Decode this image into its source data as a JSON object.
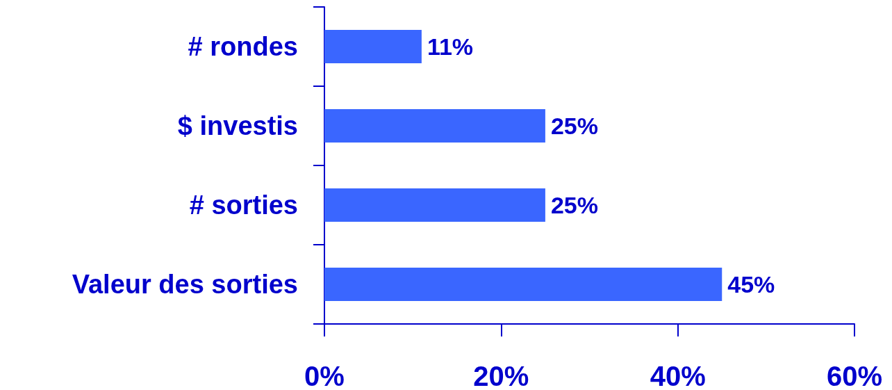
{
  "chart_data": {
    "type": "bar",
    "orientation": "horizontal",
    "categories": [
      "# rondes",
      "$ investis",
      "# sorties",
      "Valeur des sorties"
    ],
    "values": [
      11,
      25,
      25,
      45
    ],
    "color": "#3a66ff",
    "value_labels": [
      "11%",
      "25%",
      "25%",
      "45%"
    ],
    "xlim": [
      0,
      60
    ],
    "xticks": [
      {
        "value": 0,
        "label": "0%"
      },
      {
        "value": 20,
        "label": "20%"
      },
      {
        "value": 40,
        "label": "40%"
      },
      {
        "value": 60,
        "label": "60%"
      }
    ],
    "grid": false
  }
}
